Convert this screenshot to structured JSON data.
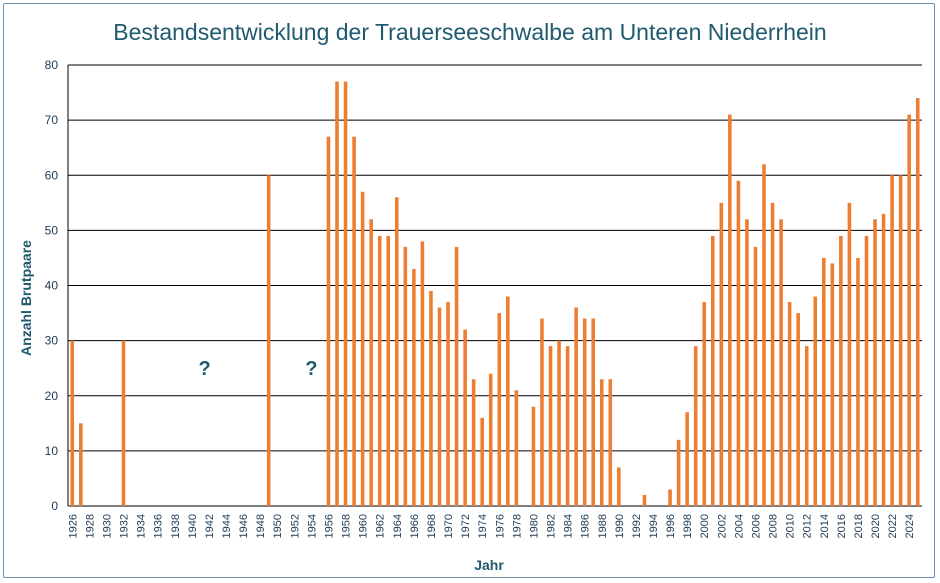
{
  "colors": {
    "bar": "#ed7d31",
    "grid": "#000000",
    "text": "#1f5a6e",
    "frame": "#6b8fb3"
  },
  "chart_data": {
    "type": "bar",
    "title": "Bestandsentwicklung der Trauerseeschwalbe am Unteren Niederrhein",
    "xlabel": "Jahr",
    "ylabel": "Anzahl Brutpaare",
    "ylim": [
      0,
      80
    ],
    "yticks": [
      0,
      10,
      20,
      30,
      40,
      50,
      60,
      70,
      80
    ],
    "x_range": [
      1926,
      2025
    ],
    "xtick_labels": [
      1926,
      1928,
      1930,
      1932,
      1934,
      1936,
      1938,
      1940,
      1942,
      1944,
      1946,
      1948,
      1950,
      1952,
      1954,
      1956,
      1958,
      1960,
      1962,
      1964,
      1966,
      1968,
      1970,
      1972,
      1974,
      1976,
      1978,
      1980,
      1982,
      1984,
      1986,
      1988,
      1990,
      1992,
      1994,
      1996,
      1998,
      2000,
      2002,
      2004,
      2006,
      2008,
      2010,
      2012,
      2014,
      2016,
      2018,
      2020,
      2022,
      2024
    ],
    "grid": true,
    "legend": "none",
    "series": [
      {
        "x": [
          1926,
          1927,
          1932,
          1949,
          1956,
          1957,
          1958,
          1959,
          1960,
          1961,
          1962,
          1963,
          1964,
          1965,
          1966,
          1967,
          1968,
          1969,
          1970,
          1971,
          1972,
          1973,
          1974,
          1975,
          1976,
          1977,
          1978,
          1980,
          1981,
          1982,
          1983,
          1984,
          1985,
          1986,
          1987,
          1988,
          1989,
          1990,
          1993,
          1996,
          1997,
          1998,
          1999,
          2000,
          2001,
          2002,
          2003,
          2004,
          2005,
          2006,
          2007,
          2008,
          2009,
          2010,
          2011,
          2012,
          2013,
          2014,
          2015,
          2016,
          2017,
          2018,
          2019,
          2020,
          2021,
          2022,
          2023,
          2024,
          2025
        ],
        "values": [
          30,
          15,
          30,
          60,
          67,
          77,
          77,
          67,
          57,
          52,
          49,
          49,
          56,
          47,
          43,
          48,
          39,
          36,
          37,
          47,
          32,
          23,
          16,
          24,
          35,
          38,
          21,
          18,
          34,
          29,
          30,
          29,
          36,
          34,
          34,
          23,
          23,
          7,
          2,
          3,
          12,
          17,
          29,
          37,
          49,
          55,
          71,
          59,
          52,
          47,
          62,
          55,
          52,
          37,
          35,
          29,
          38,
          45,
          44,
          49,
          55,
          45,
          49,
          52,
          53,
          60,
          60,
          71,
          74
        ]
      }
    ],
    "annotations": [
      {
        "text": "?",
        "x": 1941.5,
        "y": 25
      },
      {
        "text": "?",
        "x": 1954,
        "y": 25
      }
    ]
  }
}
